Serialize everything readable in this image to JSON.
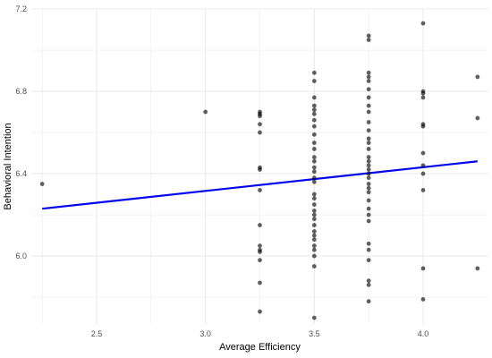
{
  "chart_data": {
    "type": "scatter",
    "xlabel": "Average Efficiency",
    "ylabel": "Behavioral Intention",
    "xlim": [
      2.2,
      4.3
    ],
    "ylim": [
      5.67,
      7.2
    ],
    "x_ticks": [
      2.5,
      3.0,
      3.5,
      4.0
    ],
    "x_tick_labels": [
      "2.5",
      "3.0",
      "3.5",
      "4.0"
    ],
    "y_ticks": [
      6.0,
      6.4,
      6.8,
      7.2
    ],
    "y_tick_labels": [
      "6.0",
      "6.4",
      "6.8",
      "7.2"
    ],
    "grid": true,
    "points": [
      [
        2.25,
        6.35
      ],
      [
        3.0,
        6.7
      ],
      [
        3.25,
        6.7
      ],
      [
        3.25,
        6.69
      ],
      [
        3.25,
        6.68
      ],
      [
        3.25,
        6.64
      ],
      [
        3.25,
        6.6
      ],
      [
        3.25,
        6.43
      ],
      [
        3.25,
        6.42
      ],
      [
        3.25,
        6.32
      ],
      [
        3.25,
        6.15
      ],
      [
        3.25,
        6.05
      ],
      [
        3.25,
        6.03
      ],
      [
        3.25,
        6.02
      ],
      [
        3.25,
        5.98
      ],
      [
        3.25,
        5.87
      ],
      [
        3.25,
        5.73
      ],
      [
        3.5,
        6.89
      ],
      [
        3.5,
        6.85
      ],
      [
        3.5,
        6.77
      ],
      [
        3.5,
        6.73
      ],
      [
        3.5,
        6.71
      ],
      [
        3.5,
        6.69
      ],
      [
        3.5,
        6.66
      ],
      [
        3.5,
        6.63
      ],
      [
        3.5,
        6.59
      ],
      [
        3.5,
        6.55
      ],
      [
        3.5,
        6.52
      ],
      [
        3.5,
        6.48
      ],
      [
        3.5,
        6.46
      ],
      [
        3.5,
        6.43
      ],
      [
        3.5,
        6.41
      ],
      [
        3.5,
        6.38
      ],
      [
        3.5,
        6.36
      ],
      [
        3.5,
        6.3
      ],
      [
        3.5,
        6.28
      ],
      [
        3.5,
        6.25
      ],
      [
        3.5,
        6.22
      ],
      [
        3.5,
        6.2
      ],
      [
        3.5,
        6.18
      ],
      [
        3.5,
        6.15
      ],
      [
        3.5,
        6.12
      ],
      [
        3.5,
        6.1
      ],
      [
        3.5,
        6.08
      ],
      [
        3.5,
        6.05
      ],
      [
        3.5,
        6.03
      ],
      [
        3.5,
        6.0
      ],
      [
        3.5,
        5.95
      ],
      [
        3.5,
        5.7
      ],
      [
        3.75,
        7.07
      ],
      [
        3.75,
        7.05
      ],
      [
        3.75,
        6.89
      ],
      [
        3.75,
        6.87
      ],
      [
        3.75,
        6.85
      ],
      [
        3.75,
        6.81
      ],
      [
        3.75,
        6.77
      ],
      [
        3.75,
        6.73
      ],
      [
        3.75,
        6.7
      ],
      [
        3.75,
        6.65
      ],
      [
        3.75,
        6.61
      ],
      [
        3.75,
        6.57
      ],
      [
        3.75,
        6.55
      ],
      [
        3.75,
        6.52
      ],
      [
        3.75,
        6.48
      ],
      [
        3.75,
        6.46
      ],
      [
        3.75,
        6.44
      ],
      [
        3.75,
        6.42
      ],
      [
        3.75,
        6.4
      ],
      [
        3.75,
        6.38
      ],
      [
        3.75,
        6.35
      ],
      [
        3.75,
        6.33
      ],
      [
        3.75,
        6.31
      ],
      [
        3.75,
        6.27
      ],
      [
        3.75,
        6.23
      ],
      [
        3.75,
        6.2
      ],
      [
        3.75,
        6.17
      ],
      [
        3.75,
        6.06
      ],
      [
        3.75,
        6.03
      ],
      [
        3.75,
        5.98
      ],
      [
        3.75,
        5.88
      ],
      [
        3.75,
        5.86
      ],
      [
        3.75,
        5.78
      ],
      [
        4.0,
        7.13
      ],
      [
        4.0,
        6.8
      ],
      [
        4.0,
        6.79
      ],
      [
        4.0,
        6.77
      ],
      [
        4.0,
        6.64
      ],
      [
        4.0,
        6.63
      ],
      [
        4.0,
        6.5
      ],
      [
        4.0,
        6.44
      ],
      [
        4.0,
        6.4
      ],
      [
        4.0,
        6.32
      ],
      [
        4.0,
        5.94
      ],
      [
        4.0,
        5.79
      ],
      [
        4.25,
        6.87
      ],
      [
        4.25,
        6.67
      ],
      [
        4.25,
        5.94
      ]
    ],
    "trend_line": {
      "x": [
        2.25,
        4.25
      ],
      "y": [
        6.23,
        6.46
      ]
    },
    "colors": {
      "points": "#000000",
      "trend_line": "#0000ee",
      "grid": "#ebebeb"
    }
  }
}
